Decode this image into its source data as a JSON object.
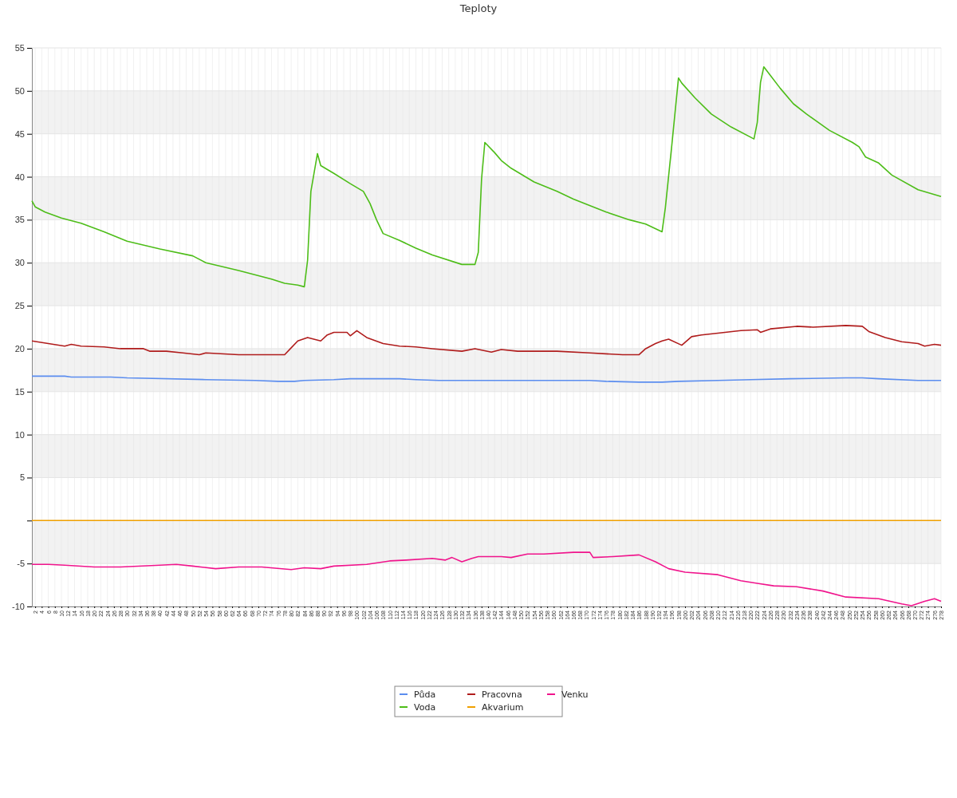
{
  "chart_data": {
    "type": "line",
    "title": "Teploty",
    "xlim": [
      1,
      278
    ],
    "xticks": [
      2,
      4,
      6,
      8,
      10,
      12,
      14,
      16,
      18,
      20,
      22,
      24,
      26,
      28,
      30,
      32,
      34,
      36,
      38,
      40,
      42,
      44,
      46,
      48,
      50,
      52,
      54,
      56,
      58,
      60,
      62,
      64,
      66,
      68,
      70,
      72,
      74,
      76,
      78,
      80,
      82,
      84,
      86,
      88,
      90,
      92,
      94,
      96,
      98,
      100,
      102,
      104,
      106,
      108,
      110,
      112,
      114,
      116,
      118,
      120,
      122,
      124,
      126,
      128,
      130,
      132,
      134,
      136,
      138,
      140,
      142,
      144,
      146,
      148,
      150,
      152,
      154,
      156,
      158,
      160,
      162,
      164,
      166,
      168,
      170,
      172,
      174,
      176,
      178,
      180,
      182,
      184,
      186,
      188,
      190,
      192,
      194,
      196,
      198,
      200,
      202,
      204,
      206,
      208,
      210,
      212,
      214,
      216,
      218,
      220,
      222,
      224,
      226,
      228,
      230,
      232,
      234,
      236,
      238,
      240,
      242,
      244,
      246,
      248,
      250,
      252,
      254,
      256,
      258,
      260,
      262,
      264,
      266,
      268,
      270,
      272,
      274,
      276,
      278
    ],
    "ylim": [
      -10,
      55
    ],
    "yticks": [
      -10,
      -5,
      {
        "value": 0,
        "label": null
      },
      5,
      10,
      15,
      20,
      25,
      30,
      35,
      40,
      45,
      50,
      55
    ],
    "grid": true,
    "legend": "bottom",
    "marker": "none",
    "line_style": "solid",
    "series": [
      {
        "name": "Půda",
        "color": "#5b8def",
        "x": [
          1,
          11,
          13,
          25,
          30,
          54,
          69,
          76,
          81,
          84,
          93,
          98,
          113,
          118,
          125,
          171,
          176,
          186,
          193,
          198,
          210,
          220,
          232,
          249,
          254,
          259,
          271,
          278
        ],
        "values": [
          16.8,
          16.8,
          16.7,
          16.7,
          16.6,
          16.4,
          16.3,
          16.2,
          16.2,
          16.3,
          16.4,
          16.5,
          16.5,
          16.4,
          16.3,
          16.3,
          16.2,
          16.1,
          16.1,
          16.2,
          16.3,
          16.4,
          16.5,
          16.6,
          16.6,
          16.5,
          16.3,
          16.3
        ]
      },
      {
        "name": "Voda",
        "color": "#4dbd18",
        "x": [
          1,
          2,
          5,
          10,
          16,
          23,
          30,
          40,
          50,
          54,
          64,
          74,
          78,
          82,
          84,
          85,
          86,
          88,
          89,
          93,
          98,
          102,
          104,
          106,
          108,
          113,
          118,
          123,
          132,
          136,
          137,
          138,
          139,
          142,
          144,
          147,
          154,
          161,
          166,
          176,
          183,
          188,
          193,
          194,
          196,
          198,
          199,
          203,
          208,
          214,
          221,
          222,
          223,
          224,
          226,
          229,
          233,
          237,
          244,
          251,
          253,
          255,
          259,
          263,
          271,
          278
        ],
        "values": [
          37.2,
          36.5,
          35.9,
          35.2,
          34.6,
          33.6,
          32.5,
          31.6,
          30.8,
          30.0,
          29.1,
          28.1,
          27.6,
          27.4,
          27.2,
          30.3,
          38.3,
          42.7,
          41.3,
          40.4,
          39.2,
          38.3,
          36.9,
          35.0,
          33.4,
          32.6,
          31.7,
          30.9,
          29.8,
          29.8,
          31.2,
          39.7,
          44.0,
          42.8,
          41.9,
          41.0,
          39.4,
          38.3,
          37.4,
          35.9,
          35.0,
          34.5,
          33.6,
          36.4,
          43.8,
          51.5,
          50.9,
          49.2,
          47.3,
          45.8,
          44.4,
          46.3,
          51.0,
          52.8,
          51.8,
          50.3,
          48.5,
          47.3,
          45.4,
          44.0,
          43.5,
          42.3,
          41.6,
          40.2,
          38.5,
          37.7
        ]
      },
      {
        "name": "Pracovna",
        "color": "#b01c1c",
        "x": [
          1,
          6,
          11,
          13,
          16,
          23,
          28,
          35,
          37,
          42,
          47,
          52,
          54,
          64,
          74,
          78,
          80,
          82,
          85,
          89,
          91,
          93,
          97,
          98,
          100,
          103,
          108,
          113,
          118,
          123,
          132,
          136,
          141,
          144,
          149,
          161,
          171,
          181,
          186,
          188,
          191,
          193,
          195,
          199,
          202,
          205,
          210,
          217,
          222,
          223,
          226,
          234,
          239,
          249,
          254,
          256,
          261,
          266,
          271,
          273,
          276,
          278
        ],
        "values": [
          20.9,
          20.6,
          20.3,
          20.5,
          20.3,
          20.2,
          20.0,
          20.0,
          19.7,
          19.7,
          19.5,
          19.3,
          19.5,
          19.3,
          19.3,
          19.3,
          20.1,
          20.9,
          21.3,
          20.9,
          21.6,
          21.9,
          21.9,
          21.5,
          22.1,
          21.3,
          20.6,
          20.3,
          20.2,
          20.0,
          19.7,
          20.0,
          19.6,
          19.9,
          19.7,
          19.7,
          19.5,
          19.3,
          19.3,
          20.0,
          20.6,
          20.9,
          21.1,
          20.4,
          21.4,
          21.6,
          21.8,
          22.1,
          22.2,
          21.9,
          22.3,
          22.6,
          22.5,
          22.7,
          22.6,
          22.0,
          21.3,
          20.8,
          20.6,
          20.3,
          20.5,
          20.4
        ]
      },
      {
        "name": "Akvarium",
        "color": "#f0a000",
        "x": [
          1,
          278
        ],
        "values": [
          0,
          0
        ]
      },
      {
        "name": "Venku",
        "color": "#f0148c",
        "x": [
          1,
          6,
          11,
          20,
          28,
          40,
          45,
          50,
          57,
          64,
          71,
          80,
          84,
          89,
          93,
          103,
          110,
          115,
          123,
          127,
          129,
          132,
          135,
          137,
          144,
          147,
          152,
          157,
          166,
          171,
          172,
          178,
          186,
          191,
          195,
          200,
          210,
          217,
          222,
          227,
          234,
          242,
          249,
          259,
          266,
          269,
          273,
          276,
          278
        ],
        "values": [
          -5.1,
          -5.1,
          -5.2,
          -5.4,
          -5.4,
          -5.2,
          -5.1,
          -5.3,
          -5.6,
          -5.4,
          -5.4,
          -5.7,
          -5.5,
          -5.6,
          -5.3,
          -5.1,
          -4.7,
          -4.6,
          -4.4,
          -4.6,
          -4.3,
          -4.8,
          -4.4,
          -4.2,
          -4.2,
          -4.3,
          -3.9,
          -3.9,
          -3.7,
          -3.7,
          -4.3,
          -4.2,
          -4.0,
          -4.8,
          -5.6,
          -6.0,
          -6.3,
          -7.0,
          -7.3,
          -7.6,
          -7.7,
          -8.2,
          -8.9,
          -9.1,
          -9.7,
          -9.9,
          -9.4,
          -9.1,
          -9.4
        ]
      }
    ]
  }
}
